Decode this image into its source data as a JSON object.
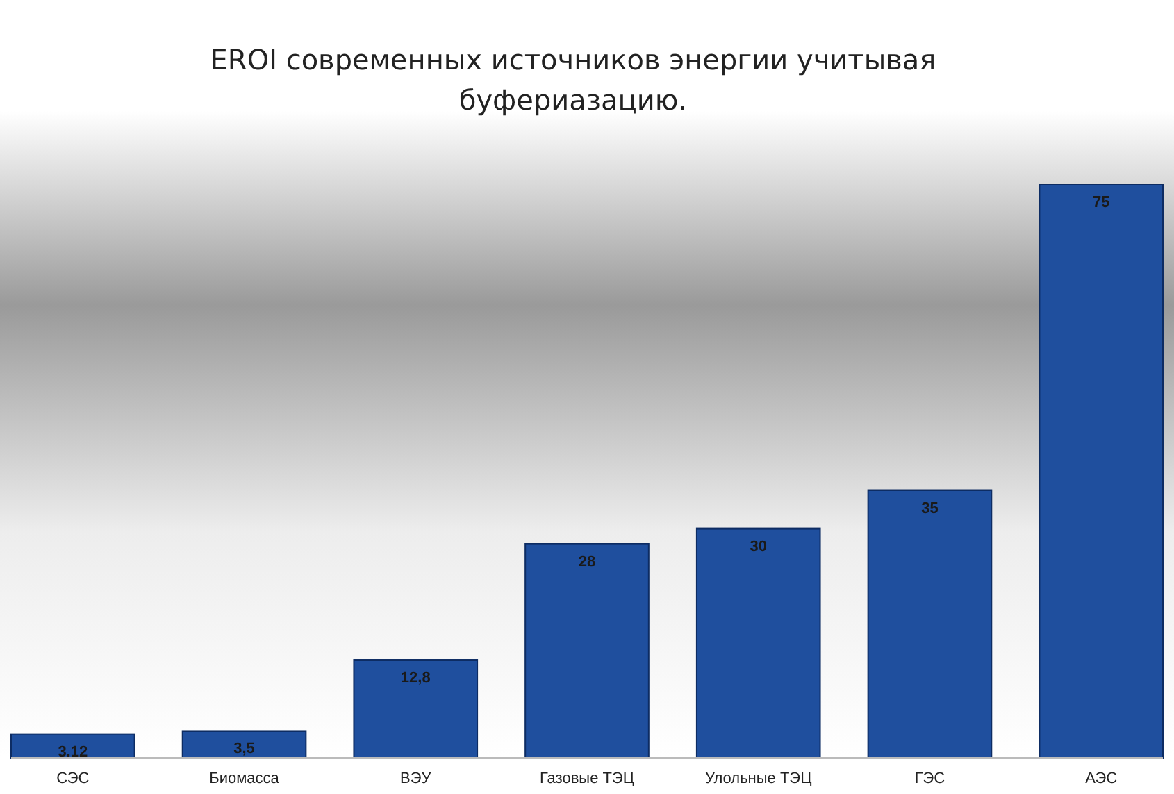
{
  "chart_data": {
    "type": "bar",
    "title": "EROI современных источников энергии учитывая буфериазацию.",
    "categories": [
      "СЭС",
      "Биомасса",
      "ВЭУ",
      "Газовые ТЭЦ",
      "Улольные ТЭЦ",
      "ГЭС",
      "АЭС"
    ],
    "values": [
      3.12,
      3.5,
      12.8,
      28,
      30,
      35,
      75
    ],
    "value_labels": [
      "3,12",
      "3,5",
      "12,8",
      "28",
      "30",
      "35",
      "75"
    ],
    "color": "#1f4f9e"
  }
}
